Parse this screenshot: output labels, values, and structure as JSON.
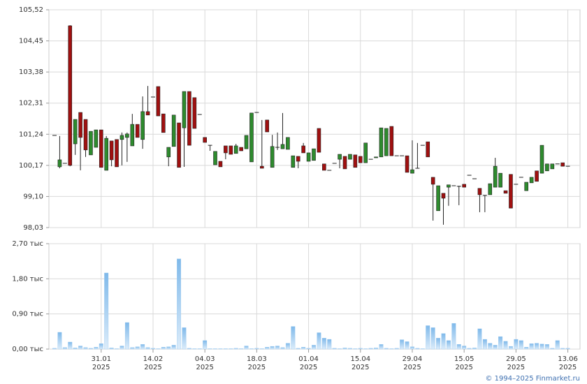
{
  "chart_data": [
    {
      "type": "candlestick",
      "up_color": "#2e8b2e",
      "down_color": "#a01010",
      "grid": true,
      "ylim": [
        98.03,
        105.52
      ],
      "yticks": [
        {
          "value": 98.03,
          "label": "98,03"
        },
        {
          "value": 99.1,
          "label": "99,10"
        },
        {
          "value": 100.17,
          "label": "100,17"
        },
        {
          "value": 101.24,
          "label": "101,24"
        },
        {
          "value": 102.31,
          "label": "102,31"
        },
        {
          "value": 103.38,
          "label": "103,38"
        },
        {
          "value": 104.45,
          "label": "104,45"
        },
        {
          "value": 105.52,
          "label": "105,52"
        }
      ],
      "open": [
        101.2,
        100.12,
        100.24,
        104.97,
        100.91,
        101.99,
        101.75,
        100.53,
        100.79,
        101.39,
        100.0,
        101.01,
        101.06,
        101.06,
        101.13,
        100.84,
        101.58,
        101.06,
        102.02,
        102.52,
        102.88,
        101.94,
        100.46,
        100.82,
        101.63,
        101.46,
        102.71,
        102.5,
        101.92,
        101.13,
        100.86,
        100.19,
        100.31,
        100.84,
        100.84,
        100.58,
        100.79,
        100.74,
        100.29,
        101.99,
        100.14,
        101.73,
        100.1,
        100.79,
        100.74,
        100.72,
        100.1,
        100.48,
        100.84,
        100.31,
        100.34,
        101.44,
        100.22,
        100.0,
        100.24,
        100.38,
        100.48,
        100.38,
        100.53,
        100.48,
        100.26,
        100.38,
        100.43,
        100.46,
        100.5,
        101.51,
        100.5,
        100.5,
        100.5,
        99.9,
        100.07,
        100.86,
        100.98,
        99.76,
        98.61,
        99.21,
        99.42,
        99.47,
        99.45,
        99.52,
        99.83,
        99.71,
        99.38,
        99.14,
        99.16,
        99.42,
        99.42,
        99.3,
        99.86,
        99.52,
        99.76,
        99.3,
        99.57,
        99.98,
        99.9,
        99.98,
        100.05,
        100.22,
        100.26,
        100.14
      ],
      "high": [
        101.2,
        101.18,
        100.24,
        104.99,
        101.75,
        101.99,
        101.75,
        101.34,
        101.39,
        101.39,
        101.18,
        101.01,
        101.06,
        101.3,
        101.3,
        101.94,
        101.58,
        102.54,
        102.9,
        102.52,
        102.88,
        101.94,
        100.79,
        101.9,
        101.63,
        102.71,
        102.71,
        102.5,
        101.92,
        101.13,
        100.86,
        100.65,
        100.31,
        100.84,
        100.84,
        100.91,
        100.79,
        101.2,
        101.97,
        101.99,
        101.73,
        101.73,
        101.22,
        101.3,
        101.97,
        101.13,
        100.5,
        100.48,
        100.94,
        100.6,
        100.74,
        101.44,
        100.22,
        100.0,
        100.24,
        100.55,
        100.48,
        100.55,
        100.53,
        100.48,
        100.94,
        100.38,
        100.46,
        101.46,
        101.44,
        101.51,
        100.5,
        100.5,
        100.5,
        101.03,
        100.94,
        100.86,
        100.98,
        99.76,
        99.47,
        99.21,
        99.5,
        99.47,
        99.47,
        99.52,
        99.83,
        99.71,
        99.38,
        99.14,
        99.54,
        100.43,
        99.9,
        99.3,
        99.86,
        99.52,
        99.76,
        99.59,
        99.76,
        99.98,
        100.86,
        100.22,
        100.22,
        100.22,
        100.26,
        100.14
      ],
      "low": [
        101.2,
        100.07,
        100.24,
        100.14,
        100.53,
        100.0,
        100.46,
        100.53,
        100.79,
        100.1,
        100.0,
        100.14,
        100.12,
        100.17,
        100.29,
        100.84,
        101.13,
        100.74,
        101.9,
        102.52,
        101.87,
        101.3,
        100.14,
        100.82,
        100.1,
        100.12,
        100.86,
        101.44,
        101.92,
        100.96,
        100.67,
        100.19,
        100.12,
        100.38,
        100.55,
        100.58,
        100.67,
        100.74,
        100.29,
        101.99,
        100.07,
        101.32,
        100.1,
        100.7,
        100.74,
        100.72,
        100.1,
        100.07,
        100.6,
        100.31,
        100.34,
        100.62,
        100.0,
        100.0,
        100.24,
        100.07,
        100.05,
        100.38,
        100.1,
        100.26,
        100.26,
        100.38,
        100.43,
        100.46,
        100.5,
        100.5,
        100.5,
        100.5,
        99.93,
        99.9,
        100.07,
        100.86,
        100.46,
        98.27,
        98.61,
        98.13,
        98.78,
        99.47,
        98.8,
        99.42,
        99.83,
        99.71,
        98.56,
        98.56,
        99.16,
        99.42,
        99.42,
        99.21,
        98.7,
        99.52,
        99.76,
        99.3,
        99.57,
        99.62,
        99.9,
        99.98,
        100.05,
        100.22,
        100.14,
        100.14
      ],
      "close": [
        101.2,
        100.36,
        100.24,
        100.17,
        101.75,
        101.13,
        100.7,
        101.34,
        101.39,
        100.1,
        101.1,
        100.36,
        100.12,
        101.2,
        101.25,
        101.58,
        101.13,
        102.02,
        101.9,
        102.52,
        101.87,
        101.3,
        100.79,
        101.9,
        100.1,
        102.71,
        100.86,
        101.44,
        101.92,
        100.96,
        100.86,
        100.65,
        100.12,
        100.6,
        100.55,
        100.84,
        100.67,
        101.2,
        101.97,
        101.99,
        100.07,
        101.32,
        100.82,
        100.79,
        100.89,
        101.13,
        100.5,
        100.31,
        100.6,
        100.6,
        100.74,
        100.62,
        100.0,
        100.0,
        100.24,
        100.55,
        100.05,
        100.55,
        100.1,
        100.26,
        100.94,
        100.38,
        100.46,
        101.46,
        101.44,
        100.5,
        100.5,
        100.5,
        99.93,
        100.02,
        100.07,
        100.86,
        100.46,
        99.52,
        99.47,
        99.04,
        99.5,
        99.47,
        99.47,
        99.42,
        99.83,
        99.71,
        99.16,
        99.14,
        99.54,
        100.14,
        99.9,
        99.21,
        98.7,
        99.52,
        99.76,
        99.59,
        99.76,
        99.62,
        100.86,
        100.22,
        100.22,
        100.22,
        100.14,
        100.14
      ]
    },
    {
      "type": "bar",
      "color": "#8ec3ee",
      "grid": true,
      "ylim": [
        0,
        2.7
      ],
      "yticks": [
        {
          "value": 0,
          "label": "0,00 тыс"
        },
        {
          "value": 0.9,
          "label": "0,90 тыс"
        },
        {
          "value": 1.8,
          "label": "1,80 тыс"
        },
        {
          "value": 2.7,
          "label": "2,70 тыс"
        }
      ],
      "xticks": [
        {
          "value": 9,
          "label": "31.01",
          "year": "2025"
        },
        {
          "value": 19,
          "label": "14.02",
          "year": "2025"
        },
        {
          "value": 29,
          "label": "04.03",
          "year": "2025"
        },
        {
          "value": 39,
          "label": "18.03",
          "year": "2025"
        },
        {
          "value": 49,
          "label": "01.04",
          "year": "2025"
        },
        {
          "value": 59,
          "label": "15.04",
          "year": "2025"
        },
        {
          "value": 69,
          "label": "29.04",
          "year": "2025"
        },
        {
          "value": 79,
          "label": "15.05",
          "year": "2025"
        },
        {
          "value": 89,
          "label": "29.05",
          "year": "2025"
        },
        {
          "value": 99,
          "label": "13.06",
          "year": "2025"
        }
      ],
      "values": [
        0.02,
        0.43,
        0.04,
        0.18,
        0.03,
        0.08,
        0.04,
        0.02,
        0.05,
        0.14,
        1.95,
        0.03,
        0.01,
        0.08,
        0.68,
        0.04,
        0.06,
        0.12,
        0.04,
        0.02,
        0.01,
        0.05,
        0.06,
        0.1,
        2.31,
        0.55,
        0.02,
        0.01,
        0.01,
        0.22,
        0.01,
        0.01,
        0.01,
        0.01,
        0.01,
        0.02,
        0.01,
        0.08,
        0.01,
        0.02,
        0.01,
        0.05,
        0.07,
        0.08,
        0.04,
        0.15,
        0.58,
        0.02,
        0.05,
        0.02,
        0.1,
        0.42,
        0.28,
        0.25,
        0.02,
        0.01,
        0.03,
        0.02,
        0.01,
        0.02,
        0.01,
        0.02,
        0.03,
        0.12,
        0.02,
        0.01,
        0.02,
        0.24,
        0.19,
        0.06,
        0.02,
        0.01,
        0.6,
        0.55,
        0.28,
        0.4,
        0.22,
        0.66,
        0.12,
        0.08,
        0.02,
        0.03,
        0.52,
        0.25,
        0.15,
        0.1,
        0.32,
        0.2,
        0.07,
        0.25,
        0.22,
        0.05,
        0.14,
        0.15,
        0.13,
        0.12,
        0.02,
        0.22,
        0.02,
        0.02
      ]
    }
  ],
  "source": "© 1994–2025 Finmarket.ru"
}
